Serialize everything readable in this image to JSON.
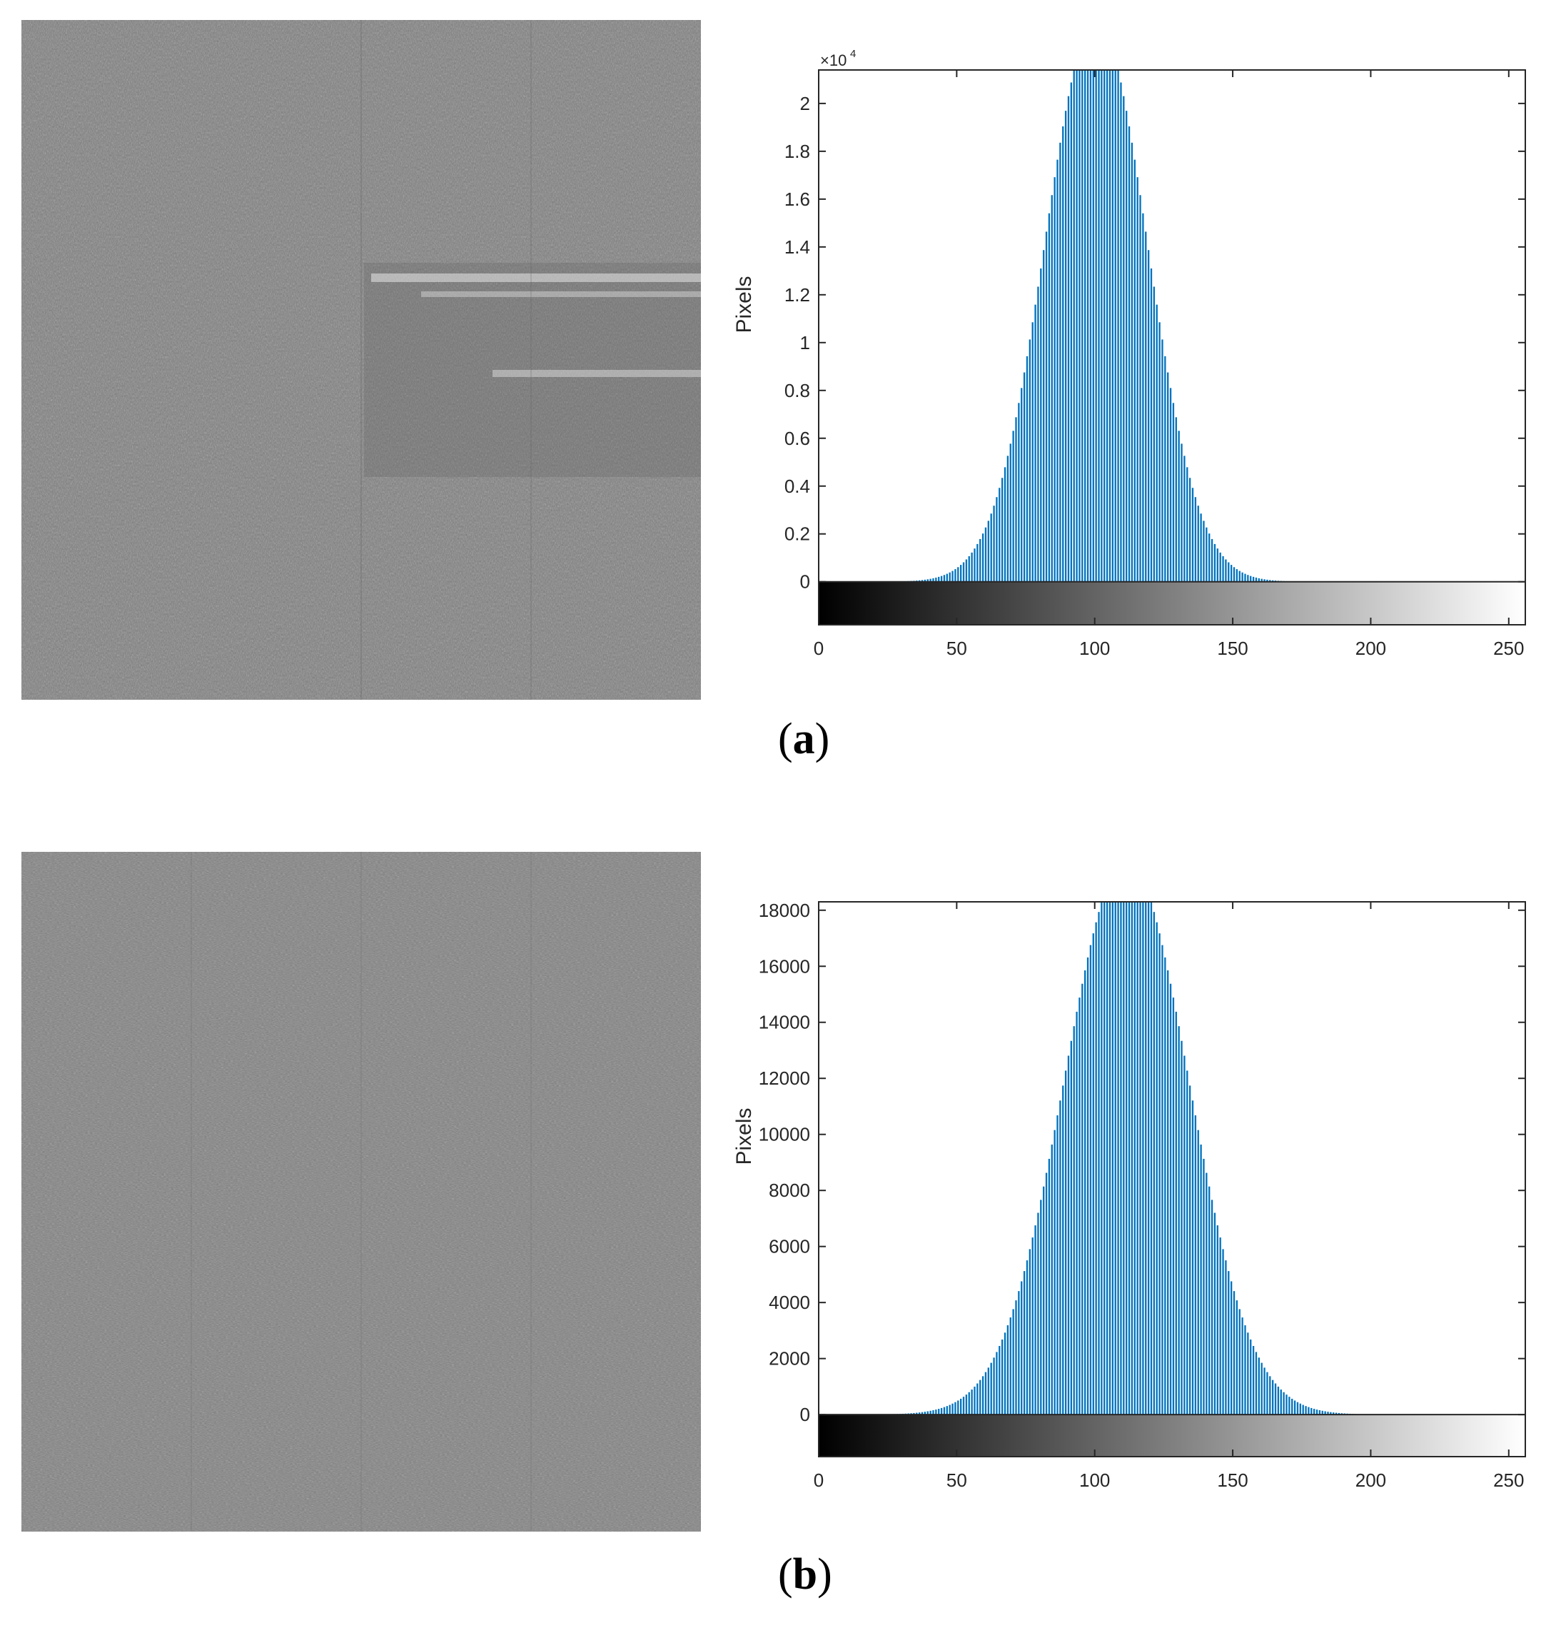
{
  "figure": {
    "panels": [
      {
        "label_open": "(",
        "label_letter": "a",
        "label_close": ")"
      },
      {
        "label_open": "(",
        "label_letter": "b",
        "label_close": ")"
      }
    ]
  },
  "colors": {
    "bar": "#0072bd",
    "photo_gray": "#7e7e7e"
  },
  "chart_data": [
    {
      "type": "bar",
      "title": "",
      "xlabel": "",
      "ylabel": "Pixels",
      "exponent_label": "×10",
      "exponent_power": "4",
      "xlim": [
        0,
        256
      ],
      "ylim": [
        -1800,
        21400
      ],
      "grid": false,
      "legend": "none",
      "colorbar": "grayscale 0-255 below zero line",
      "xticks": [
        0,
        50,
        100,
        150,
        200,
        250
      ],
      "yticks": [
        0,
        2000,
        4000,
        6000,
        8000,
        10000,
        12000,
        14000,
        16000,
        18000,
        20000
      ],
      "ytick_labels": [
        "0",
        "0.2",
        "0.4",
        "0.6",
        "0.8",
        "1",
        "1.2",
        "1.4",
        "1.6",
        "1.8",
        "2"
      ],
      "distribution": {
        "shape": "gaussian",
        "peak_bin": 100,
        "peak_value": 23500,
        "sigma": 18.5,
        "clipped_at": 21400
      }
    },
    {
      "type": "bar",
      "title": "",
      "xlabel": "",
      "ylabel": "Pixels",
      "xlim": [
        0,
        256
      ],
      "ylim": [
        -1500,
        18300
      ],
      "grid": false,
      "legend": "none",
      "colorbar": "grayscale 0-255 below zero line",
      "xticks": [
        0,
        50,
        100,
        150,
        200,
        250
      ],
      "yticks": [
        0,
        2000,
        4000,
        6000,
        8000,
        10000,
        12000,
        14000,
        16000,
        18000
      ],
      "ytick_labels": [
        "0",
        "2000",
        "4000",
        "6000",
        "8000",
        "10000",
        "12000",
        "14000",
        "16000",
        "18000"
      ],
      "distribution": {
        "shape": "gaussian",
        "peak_bin": 111,
        "peak_value": 19800,
        "sigma": 22.5,
        "clipped_at": 18300
      }
    }
  ]
}
